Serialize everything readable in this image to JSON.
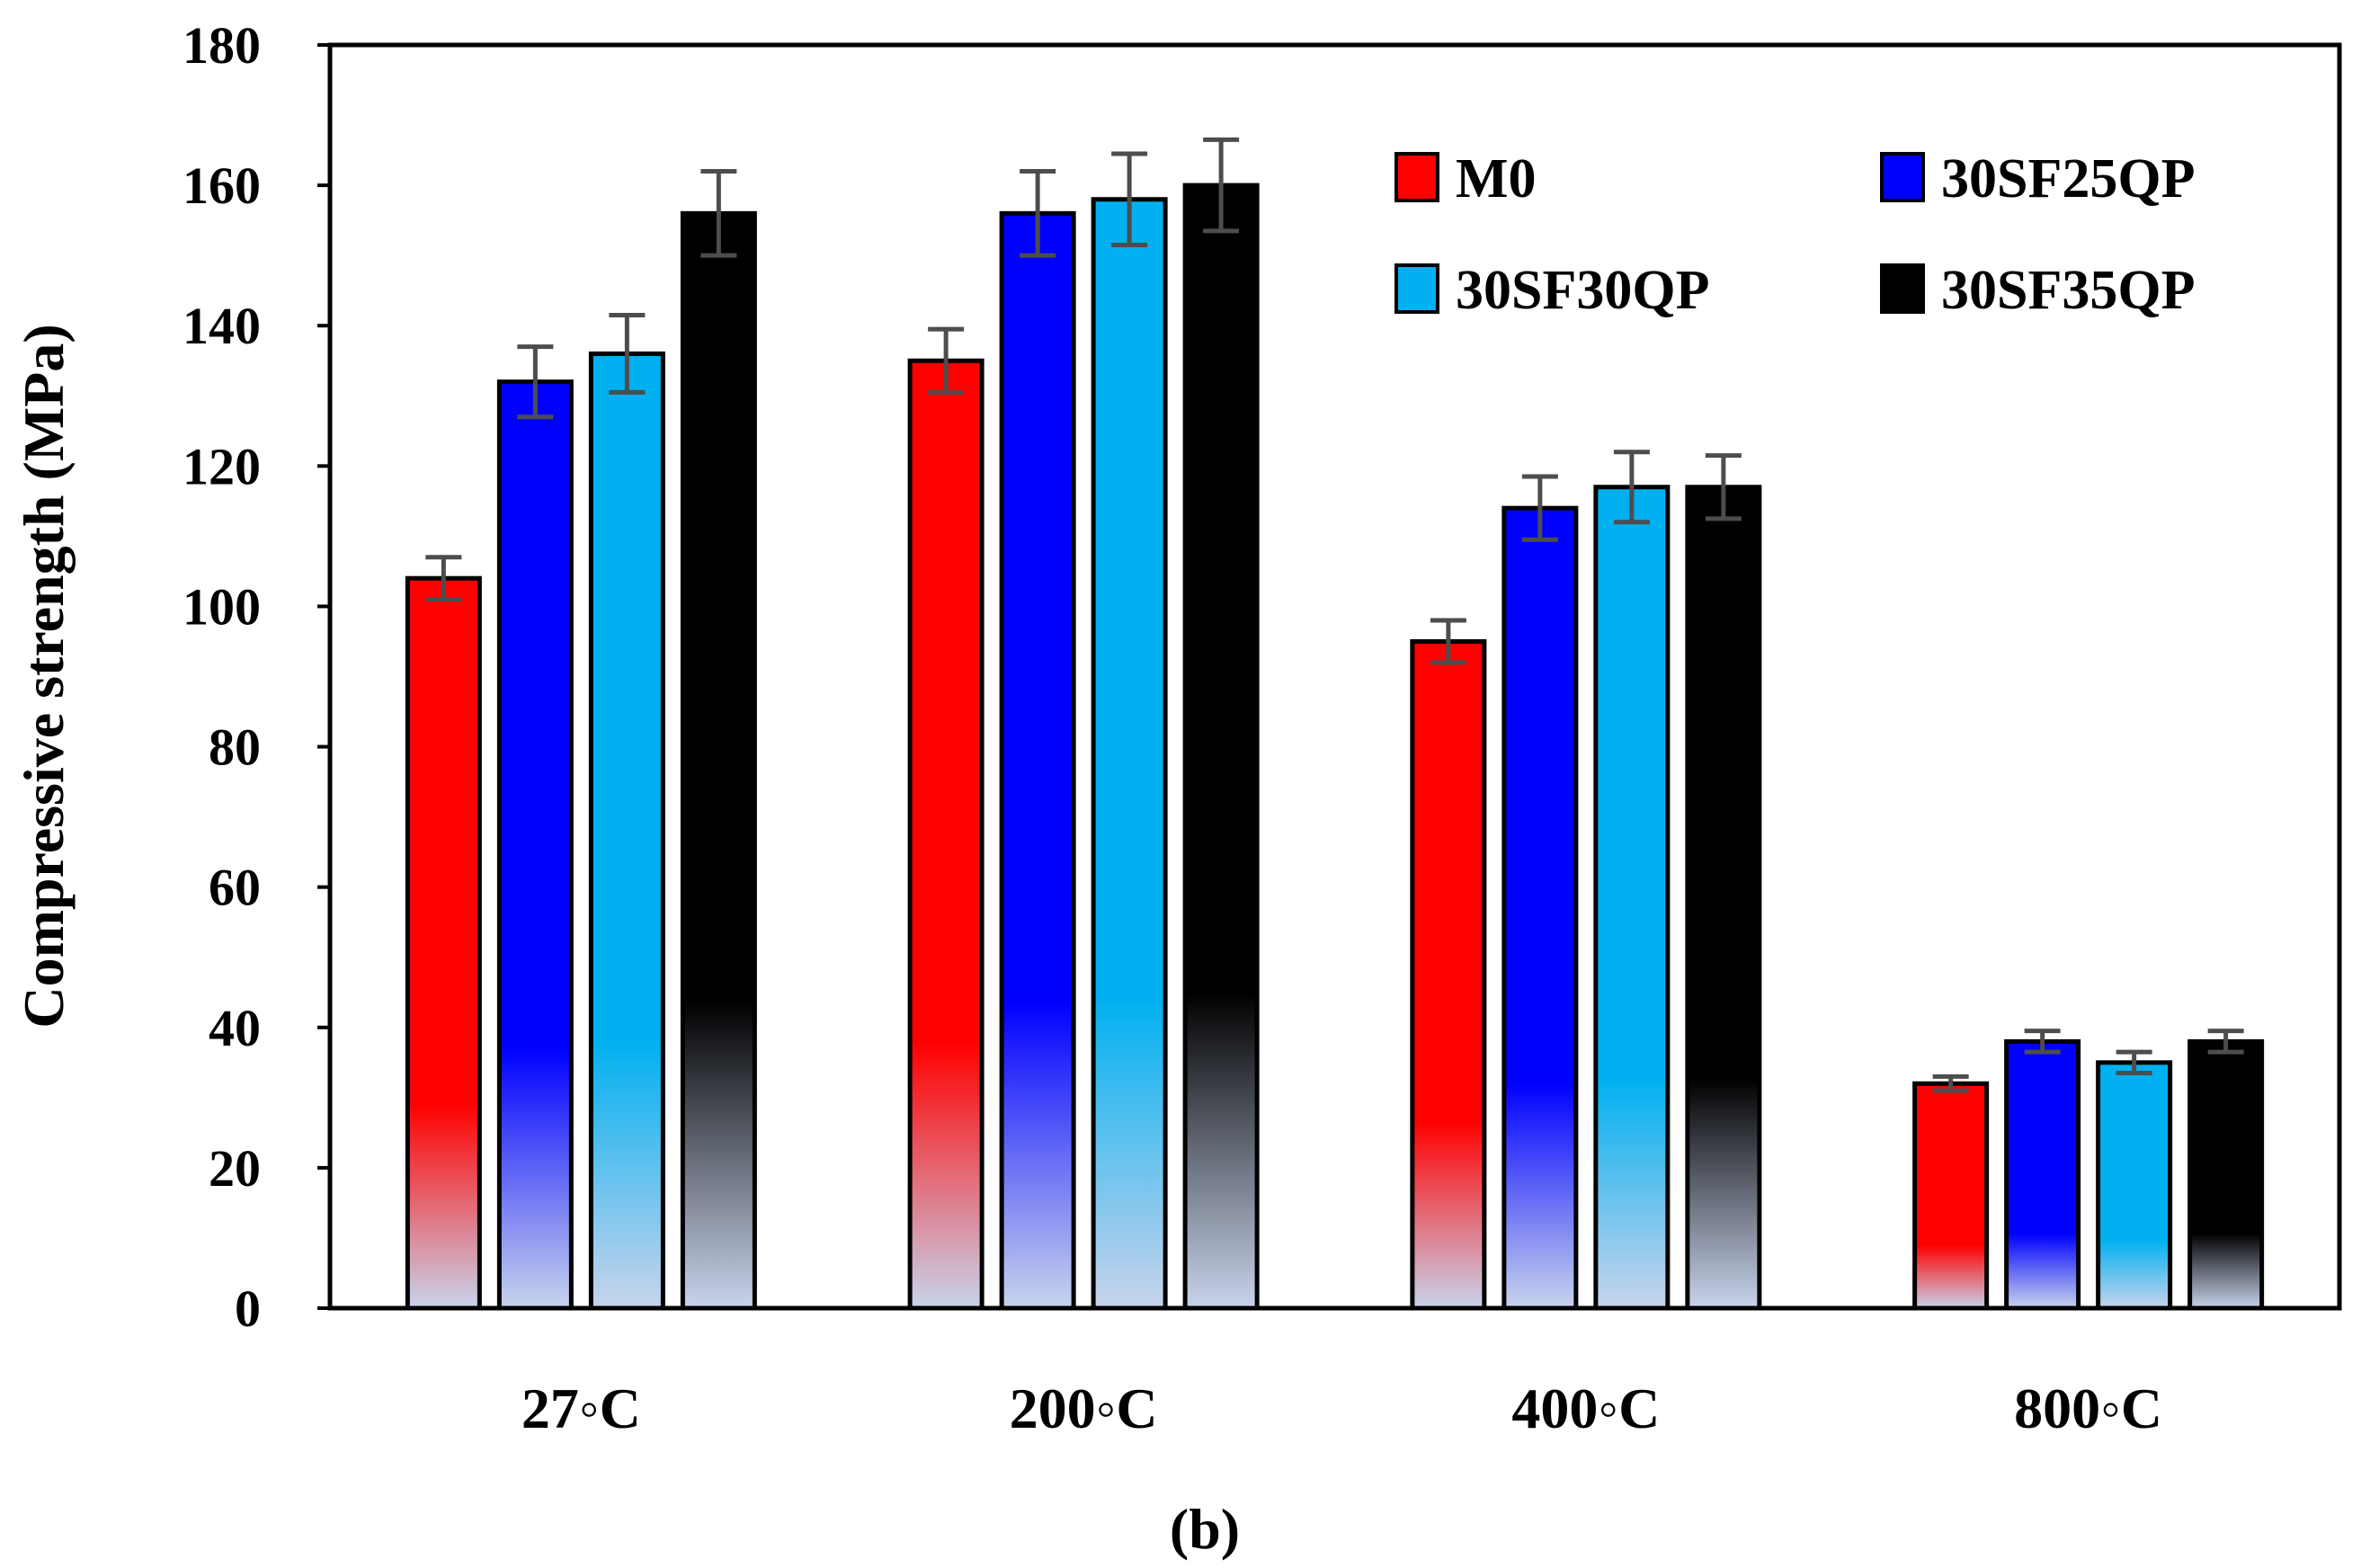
{
  "chart_data": {
    "type": "bar",
    "title": "",
    "xlabel": "",
    "ylabel": "Compressive strength (MPa)",
    "caption": "(b)",
    "ylim": [
      0,
      180
    ],
    "yticks": [
      0,
      20,
      40,
      60,
      80,
      100,
      120,
      140,
      160,
      180
    ],
    "categories": [
      "27◦C",
      "200◦C",
      "400◦C",
      "800◦C"
    ],
    "series": [
      {
        "name": "M0",
        "color": "#ff0000",
        "values": [
          104,
          135,
          95,
          32
        ],
        "errors": [
          3,
          4.5,
          3,
          1
        ]
      },
      {
        "name": "30SF25QP",
        "color": "#0000ff",
        "values": [
          132,
          156,
          114,
          38
        ],
        "errors": [
          5,
          6,
          4.5,
          1.5
        ]
      },
      {
        "name": "30SF30QP",
        "color": "#00b0f0",
        "values": [
          136,
          158,
          117,
          35
        ],
        "errors": [
          5.5,
          6.5,
          5,
          1.5
        ]
      },
      {
        "name": "30SF35QP",
        "color": "#000000",
        "values": [
          156,
          160,
          117,
          38
        ],
        "errors": [
          6,
          6.5,
          4.5,
          1.5
        ]
      }
    ],
    "legend_position": "top-right",
    "grid": false
  }
}
